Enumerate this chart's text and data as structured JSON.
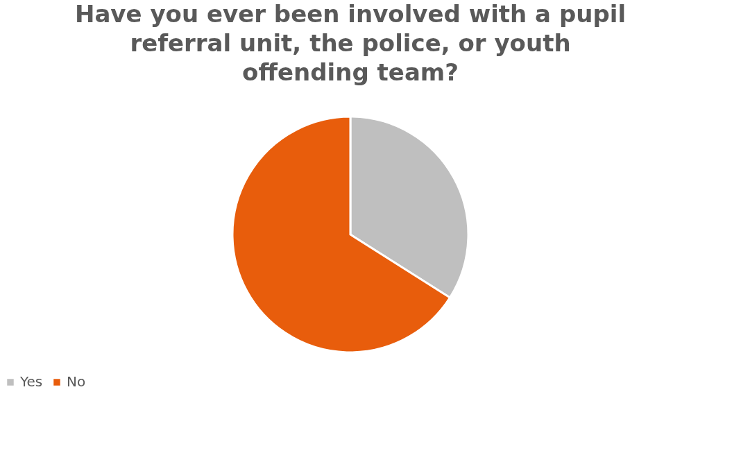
{
  "chart_data": {
    "type": "pie",
    "title": "Have you ever been involved with a pupil referral unit, the police, or youth offending team?",
    "categories": [
      "Yes",
      "No"
    ],
    "values": [
      34,
      66
    ],
    "colors": [
      "#bfbfbf",
      "#e85d0c"
    ],
    "legend": "bottom"
  }
}
